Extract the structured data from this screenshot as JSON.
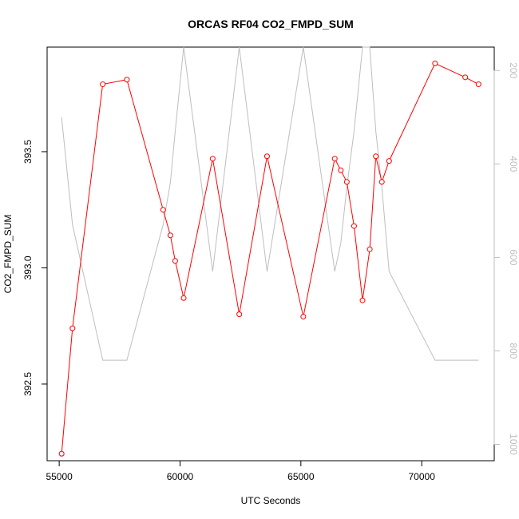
{
  "chart_data": {
    "type": "line",
    "title": "ORCAS RF04 CO2_FMPD_SUM",
    "xlabel": "UTC Seconds",
    "ylabel": "CO2_FMPD_SUM",
    "xlim": [
      54500,
      73000
    ],
    "ylim": [
      392.17,
      393.95
    ],
    "y2lim": [
      1035,
      150
    ],
    "x_ticks": [
      55000,
      60000,
      65000,
      70000
    ],
    "x_tick_labels": [
      "55000",
      "60000",
      "65000",
      "70000"
    ],
    "y_ticks": [
      392.5,
      393.0,
      393.5
    ],
    "y_tick_labels": [
      "392.5",
      "393.0",
      "393.5"
    ],
    "y2_ticks": [
      200,
      400,
      600,
      800,
      1000
    ],
    "y2_tick_labels": [
      "200",
      "400",
      "600",
      "800",
      "1000"
    ],
    "grid": false,
    "series": [
      {
        "color": "#ff0000",
        "axis": "left",
        "marker": "circle",
        "x": [
          55100,
          55550,
          56800,
          57800,
          59300,
          59600,
          59800,
          60150,
          61350,
          62450,
          63600,
          65100,
          66400,
          66650,
          66900,
          67200,
          67550,
          67850,
          68100,
          68350,
          68650,
          70550,
          71800,
          72350
        ],
        "y": [
          392.2,
          392.74,
          393.79,
          393.81,
          393.25,
          393.14,
          393.03,
          392.87,
          393.47,
          392.8,
          393.48,
          392.79,
          393.47,
          393.42,
          393.37,
          393.18,
          392.86,
          393.08,
          393.48,
          393.37,
          393.46,
          393.88,
          393.82,
          393.79
        ]
      },
      {
        "color": "#bebebe",
        "axis": "right",
        "x": [
          55100,
          55550,
          56800,
          57800,
          59300,
          59600,
          59800,
          60150,
          61350,
          62450,
          63600,
          65100,
          66400,
          66650,
          66900,
          67200,
          67550,
          67850,
          68100,
          68350,
          68650,
          70550,
          71800,
          72350
        ],
        "y": [
          300,
          530,
          820,
          820,
          530,
          440,
          330,
          150,
          630,
          150,
          630,
          150,
          630,
          570,
          450,
          330,
          150,
          150,
          330,
          450,
          630,
          820,
          820,
          820
        ]
      }
    ]
  }
}
